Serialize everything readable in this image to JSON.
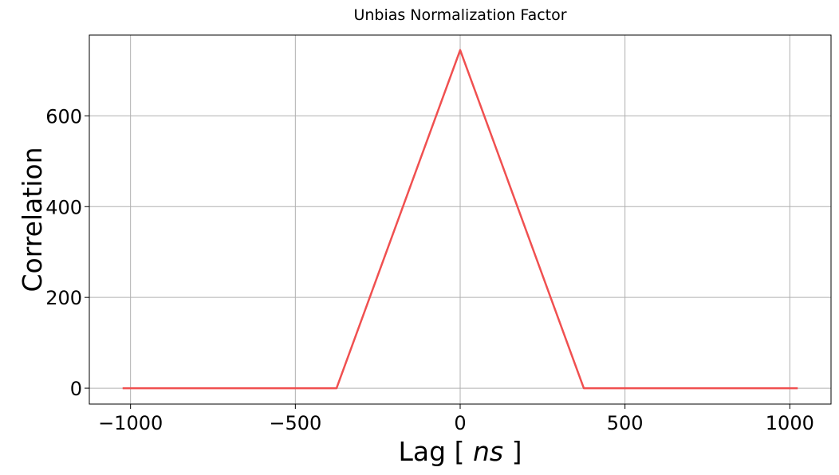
{
  "chart_data": {
    "type": "line",
    "title": "Unbias Normalization Factor",
    "xlabel_prefix": "Lag [ ",
    "xlabel_unit": "ns",
    "xlabel_suffix": " ]",
    "ylabel": "Correlation",
    "xlim": [
      -1125,
      1125
    ],
    "ylim": [
      -35,
      778
    ],
    "xticks": [
      -1000,
      -500,
      0,
      500,
      1000
    ],
    "xtick_labels": [
      "−1000",
      "−500",
      "0",
      "500",
      "1000"
    ],
    "yticks": [
      0,
      200,
      400,
      600
    ],
    "ytick_labels": [
      "0",
      "200",
      "400",
      "600"
    ],
    "grid": true,
    "series": [
      {
        "color": "#f05050",
        "x": [
          -1024,
          -375,
          0,
          375,
          1024
        ],
        "y": [
          0,
          0,
          745,
          0,
          0
        ]
      }
    ]
  }
}
